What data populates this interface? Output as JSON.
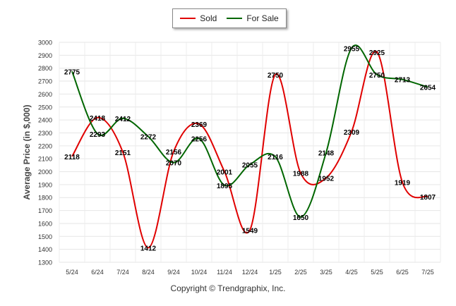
{
  "chart_data": {
    "type": "line",
    "categories": [
      "5/24",
      "6/24",
      "7/24",
      "8/24",
      "9/24",
      "10/24",
      "11/24",
      "12/24",
      "1/25",
      "2/25",
      "3/25",
      "4/25",
      "5/25",
      "6/25",
      "7/25"
    ],
    "series": [
      {
        "name": "Sold",
        "color": "#e00000",
        "values": [
          2118,
          2418,
          2151,
          1412,
          2156,
          2369,
          2001,
          1549,
          2750,
          1988,
          1952,
          2309,
          2925,
          1919,
          1807
        ]
      },
      {
        "name": "For Sale",
        "color": "#006600",
        "values": [
          2775,
          2293,
          2412,
          2272,
          2070,
          2256,
          1895,
          2055,
          2116,
          1650,
          2148,
          2955,
          2750,
          2713,
          2654
        ]
      }
    ],
    "title": "",
    "xlabel": "",
    "ylabel": "Average Price (in $,000)",
    "ylim": [
      1300,
      3000
    ],
    "yticks": [
      1300,
      1400,
      1500,
      1600,
      1700,
      1800,
      1900,
      2000,
      2100,
      2200,
      2300,
      2400,
      2500,
      2600,
      2700,
      2800,
      2900,
      3000
    ],
    "grid": true,
    "legend_position": "top-center"
  },
  "footer": {
    "copyright": "Copyright © Trendgraphix, Inc."
  }
}
